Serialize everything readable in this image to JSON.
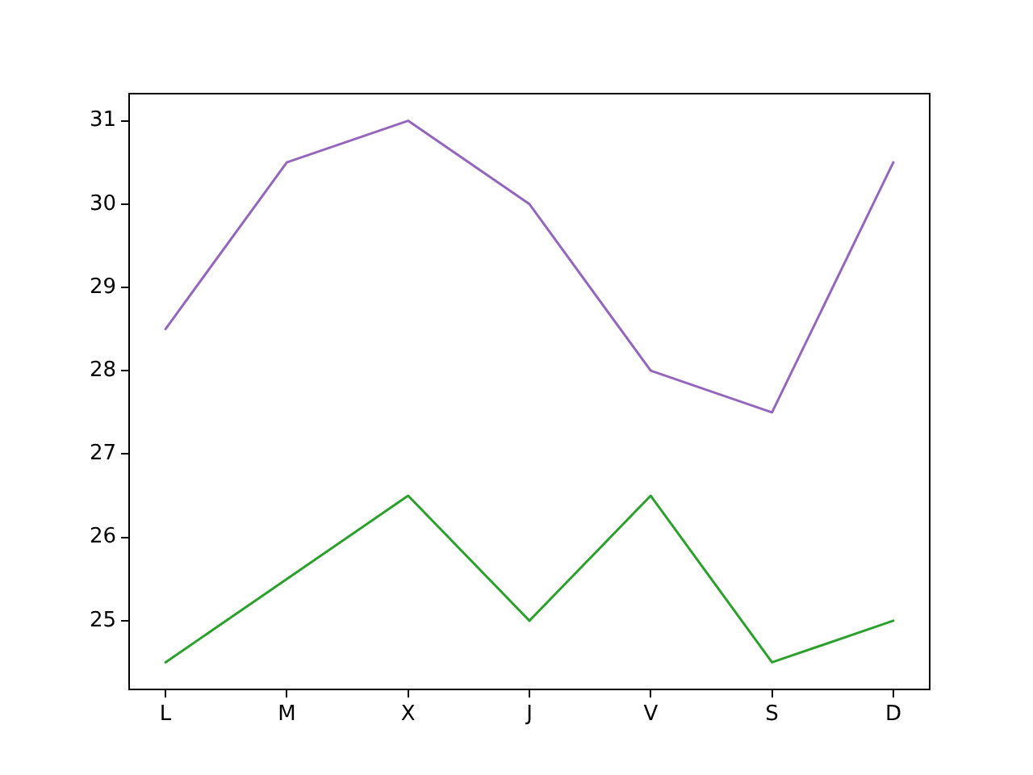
{
  "chart_data": {
    "type": "line",
    "categories": [
      "L",
      "M",
      "X",
      "J",
      "V",
      "S",
      "D"
    ],
    "series": [
      {
        "color": "#9467bd",
        "values": [
          28.5,
          30.5,
          31,
          30,
          28,
          27.5,
          30.5
        ]
      },
      {
        "color": "#2ca02c",
        "values": [
          24.5,
          25.5,
          26.5,
          25,
          26.5,
          24.5,
          25
        ]
      }
    ],
    "ylim": [
      24.175,
      31.325
    ],
    "yticks": [
      25,
      26,
      27,
      28,
      29,
      30,
      31
    ],
    "grid": false,
    "legend": false,
    "marker": "none",
    "line_style": "solid"
  }
}
